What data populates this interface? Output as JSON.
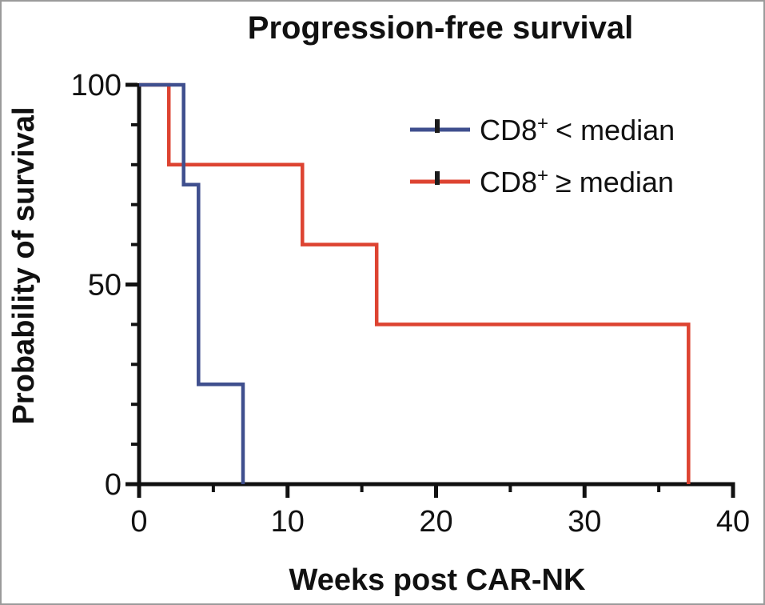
{
  "figure": {
    "title": "Progression-free survival",
    "x_axis_label": "Weeks post CAR-NK",
    "y_axis_label": "Probability of survival"
  },
  "colors": {
    "series_blue": "#3f4f8e",
    "series_red": "#dd4331",
    "axis": "#111111",
    "censor_tick": "#1c1c1c"
  },
  "legend": {
    "items": [
      {
        "base": "CD8",
        "sup": "+",
        "rest": "< median",
        "color": "#3f4f8e"
      },
      {
        "base": "CD8",
        "sup": "+",
        "rest": "≥ median",
        "color": "#dd4331"
      }
    ]
  },
  "chart_data": {
    "type": "line",
    "subtype": "kaplan-meier-step",
    "title": "Progression-free survival",
    "xlabel": "Weeks post CAR-NK",
    "ylabel": "Probability of survival",
    "xlim": [
      0,
      40
    ],
    "ylim": [
      0,
      100
    ],
    "x_major_ticks": [
      0,
      10,
      20,
      30,
      40
    ],
    "x_minor_ticks": [
      5,
      15,
      25,
      35
    ],
    "y_major_ticks": [
      0,
      50,
      100
    ],
    "y_minor_ticks": [
      10,
      20,
      30,
      40,
      60,
      70,
      80,
      90
    ],
    "grid": false,
    "legend_position": "upper-right-inside",
    "series": [
      {
        "name": "CD8+ < median",
        "color": "#3f4f8e",
        "points": [
          [
            0,
            100
          ],
          [
            3,
            100
          ],
          [
            3,
            75
          ],
          [
            4,
            75
          ],
          [
            4,
            25
          ],
          [
            7,
            25
          ],
          [
            7,
            0
          ]
        ]
      },
      {
        "name": "CD8+ ≥ median",
        "color": "#dd4331",
        "points": [
          [
            0,
            100
          ],
          [
            2,
            100
          ],
          [
            2,
            80
          ],
          [
            11,
            80
          ],
          [
            11,
            60
          ],
          [
            16,
            60
          ],
          [
            16,
            40
          ],
          [
            37,
            40
          ],
          [
            37,
            0
          ]
        ]
      }
    ]
  }
}
